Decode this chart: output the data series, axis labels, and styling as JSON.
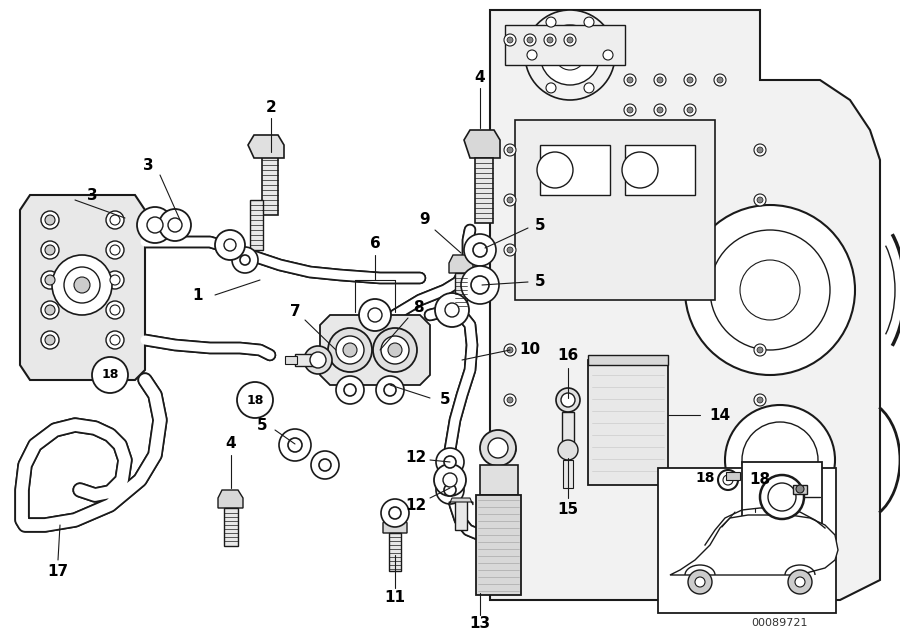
{
  "bg_color": "#ffffff",
  "line_color": "#1a1a1a",
  "label_color": "#000000",
  "fig_width": 9.0,
  "fig_height": 6.36,
  "dpi": 100,
  "diagram_id": "00089721"
}
